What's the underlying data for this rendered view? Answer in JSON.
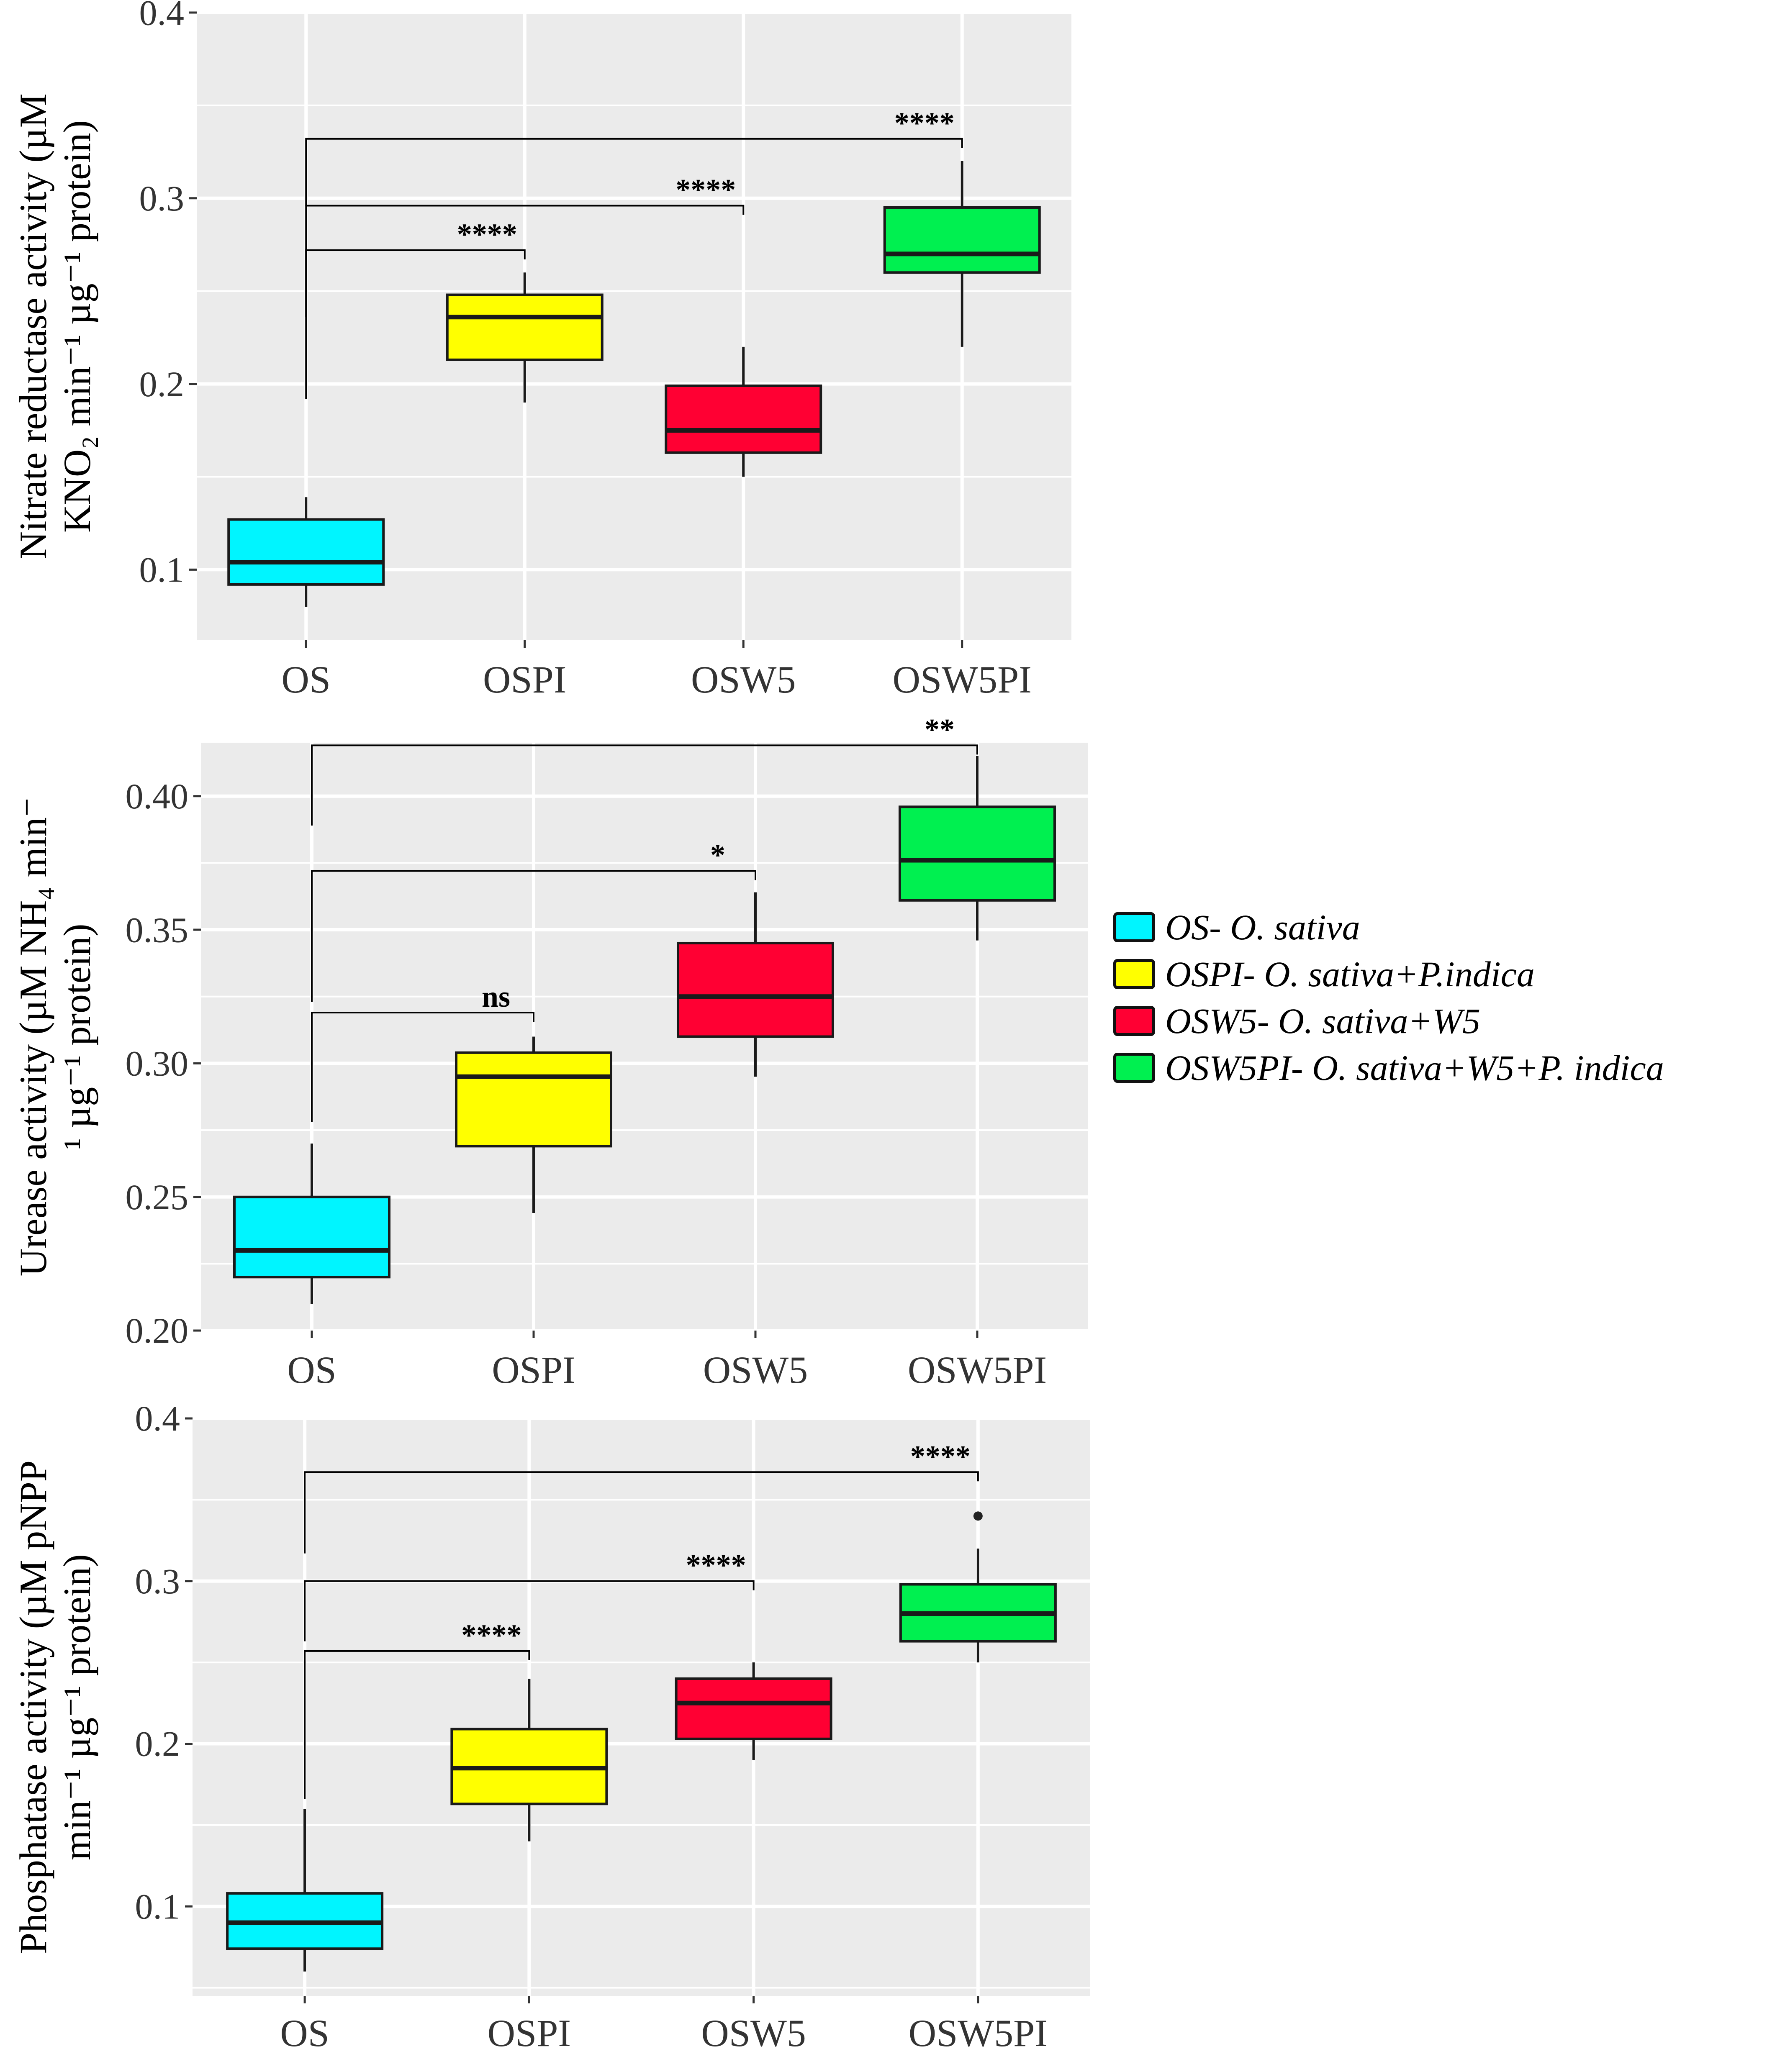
{
  "chart_data": [
    {
      "type": "box",
      "id": "nitrate",
      "ylabel_lines": [
        "Nitrate reductase activity (µM",
        "KNO₂ min⁻¹ µg⁻¹ protein)"
      ],
      "categories": [
        "OS",
        "OSPI",
        "OSW5",
        "OSW5PI"
      ],
      "ylim": [
        0.062,
        0.4
      ],
      "yticks": [
        0.1,
        0.2,
        0.3,
        0.4
      ],
      "ytick_labels": [
        "0.1",
        "0.2",
        "0.3",
        "0.4"
      ],
      "boxes": [
        {
          "group": "OS",
          "min": 0.08,
          "q1": 0.092,
          "median": 0.104,
          "q3": 0.127,
          "max": 0.139
        },
        {
          "group": "OSPI",
          "min": 0.19,
          "q1": 0.213,
          "median": 0.236,
          "q3": 0.248,
          "max": 0.26
        },
        {
          "group": "OSW5",
          "min": 0.15,
          "q1": 0.163,
          "median": 0.175,
          "q3": 0.199,
          "max": 0.22
        },
        {
          "group": "OSW5PI",
          "min": 0.22,
          "q1": 0.26,
          "median": 0.27,
          "q3": 0.295,
          "max": 0.32
        }
      ],
      "outliers": [],
      "comparisons": [
        {
          "from": "OS",
          "to": "OSPI",
          "y": 0.272,
          "left_drop": 0.236,
          "label": "****"
        },
        {
          "from": "OS",
          "to": "OSW5",
          "y": 0.296,
          "left_drop": 0.192,
          "label": "****"
        },
        {
          "from": "OS",
          "to": "OSW5PI",
          "y": 0.332,
          "left_drop": 0.296,
          "label": "****"
        }
      ]
    },
    {
      "type": "box",
      "id": "urease",
      "ylabel_lines": [
        "Urease activity (µM NH₄ min⁻",
        "¹ µg⁻¹ protein)"
      ],
      "categories": [
        "OS",
        "OSPI",
        "OSW5",
        "OSW5PI"
      ],
      "ylim": [
        0.2,
        0.42
      ],
      "yticks": [
        0.2,
        0.25,
        0.3,
        0.35,
        0.4
      ],
      "ytick_labels": [
        "0.20",
        "0.25",
        "0.30",
        "0.35",
        "0.40"
      ],
      "boxes": [
        {
          "group": "OS",
          "min": 0.21,
          "q1": 0.22,
          "median": 0.23,
          "q3": 0.25,
          "max": 0.27
        },
        {
          "group": "OSPI",
          "min": 0.244,
          "q1": 0.269,
          "median": 0.295,
          "q3": 0.304,
          "max": 0.31
        },
        {
          "group": "OSW5",
          "min": 0.295,
          "q1": 0.31,
          "median": 0.325,
          "q3": 0.345,
          "max": 0.364
        },
        {
          "group": "OSW5PI",
          "min": 0.346,
          "q1": 0.361,
          "median": 0.376,
          "q3": 0.396,
          "max": 0.415
        }
      ],
      "outliers": [],
      "comparisons": [
        {
          "from": "OS",
          "to": "OSPI",
          "y": 0.319,
          "left_drop": 0.278,
          "label": "ns"
        },
        {
          "from": "OS",
          "to": "OSW5",
          "y": 0.372,
          "left_drop": 0.323,
          "label": "*"
        },
        {
          "from": "OS",
          "to": "OSW5PI",
          "y": 0.419,
          "left_drop": 0.389,
          "label": "**"
        }
      ]
    },
    {
      "type": "box",
      "id": "phosphatase",
      "ylabel_lines": [
        "Phosphatase activity (µM pNPP",
        "min⁻¹ µg⁻¹ protein)"
      ],
      "categories": [
        "OS",
        "OSPI",
        "OSW5",
        "OSW5PI"
      ],
      "ylim": [
        0.045,
        0.4
      ],
      "yticks": [
        0.1,
        0.2,
        0.3,
        0.4
      ],
      "ytick_labels": [
        "0.1",
        "0.2",
        "0.3",
        "0.4"
      ],
      "boxes": [
        {
          "group": "OS",
          "min": 0.06,
          "q1": 0.074,
          "median": 0.09,
          "q3": 0.108,
          "max": 0.16
        },
        {
          "group": "OSPI",
          "min": 0.14,
          "q1": 0.163,
          "median": 0.185,
          "q3": 0.209,
          "max": 0.24
        },
        {
          "group": "OSW5",
          "min": 0.19,
          "q1": 0.203,
          "median": 0.225,
          "q3": 0.24,
          "max": 0.25
        },
        {
          "group": "OSW5PI",
          "min": 0.25,
          "q1": 0.263,
          "median": 0.28,
          "q3": 0.298,
          "max": 0.32
        }
      ],
      "outliers": [
        {
          "group": "OSW5PI",
          "value": 0.34
        }
      ],
      "comparisons": [
        {
          "from": "OS",
          "to": "OSPI",
          "y": 0.257,
          "left_drop": 0.166,
          "label": "****"
        },
        {
          "from": "OS",
          "to": "OSW5",
          "y": 0.3,
          "left_drop": 0.263,
          "label": "****"
        },
        {
          "from": "OS",
          "to": "OSW5PI",
          "y": 0.367,
          "left_drop": 0.317,
          "label": "****"
        }
      ]
    }
  ],
  "groups": [
    {
      "key": "OS",
      "color": "#00f5ff"
    },
    {
      "key": "OSPI",
      "color": "#ffff00"
    },
    {
      "key": "OSW5",
      "color": "#ff0033"
    },
    {
      "key": "OSW5PI",
      "color": "#00f050"
    }
  ],
  "legend": [
    {
      "label": "OS- O. sativa",
      "color": "#00f5ff"
    },
    {
      "label": "OSPI- O. sativa+P.indica",
      "color": "#ffff00"
    },
    {
      "label": "OSW5- O. sativa+W5",
      "color": "#ff0033"
    },
    {
      "label": "OSW5PI- O. sativa+W5+P. indica",
      "color": "#00f050"
    }
  ],
  "colors": {
    "panel_bg": "#ebebeb",
    "grid": "#ffffff",
    "box_line": "#1a1a1a",
    "text": "#333333"
  }
}
